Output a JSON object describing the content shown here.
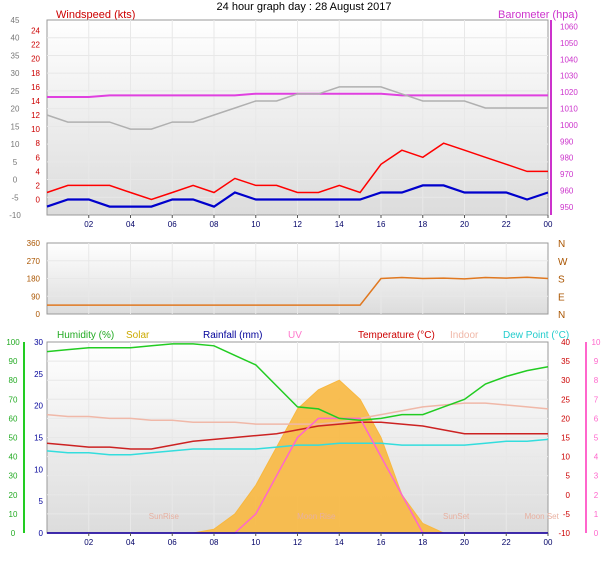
{
  "title": "24 hour graph day : 28 August 2017",
  "time_ticks": [
    "02",
    "04",
    "06",
    "08",
    "10",
    "12",
    "14",
    "16",
    "18",
    "20",
    "22",
    "00"
  ],
  "colors": {
    "gust": "#ff0000",
    "wind": "#0000cc",
    "baro": "#e040e0",
    "gust_bar": "#b0b0b0",
    "dir": "#e07820",
    "humidity": "#22cc22",
    "temperature": "#cc2222",
    "dewpoint": "#33dddd",
    "indoor": "#f0b8a8",
    "uv": "#ff66cc",
    "solar": "#f8b840",
    "rainfall": "#000099"
  },
  "chart_data": [
    {
      "type": "line",
      "panel": "wind",
      "ylabel": "Windspeed (kts)",
      "y2label": "Barometer (hpa)",
      "y_ticks": [
        -10,
        -5,
        0,
        5,
        10,
        15,
        20,
        25,
        30,
        35,
        40,
        45
      ],
      "y_ticks_secondary": [
        0,
        2,
        4,
        6,
        8,
        10,
        12,
        14,
        16,
        18,
        20,
        22,
        24
      ],
      "y2_ticks": [
        950,
        960,
        970,
        980,
        990,
        1000,
        1010,
        1020,
        1030,
        1040,
        1050,
        1060
      ],
      "x_hours": [
        0,
        1,
        2,
        3,
        4,
        5,
        6,
        7,
        8,
        9,
        10,
        11,
        12,
        13,
        14,
        15,
        16,
        17,
        18,
        19,
        20,
        21,
        22,
        23,
        24
      ],
      "series": [
        {
          "key": "baro",
          "values": [
            1017,
            1017,
            1017,
            1018,
            1018,
            1018,
            1018,
            1018,
            1018,
            1018,
            1019,
            1019,
            1019,
            1019,
            1019,
            1019,
            1019,
            1018,
            1018,
            1018,
            1018,
            1018,
            1018,
            1018,
            1018
          ]
        },
        {
          "key": "gust_bar",
          "values": [
            12,
            11,
            11,
            11,
            10,
            10,
            11,
            11,
            12,
            13,
            14,
            14,
            15,
            15,
            16,
            16,
            16,
            15,
            14,
            14,
            14,
            13,
            13,
            13,
            13
          ]
        },
        {
          "key": "gust",
          "values": [
            1,
            2,
            2,
            2,
            1,
            0,
            1,
            2,
            1,
            3,
            2,
            2,
            1,
            1,
            2,
            1,
            5,
            7,
            6,
            8,
            7,
            6,
            5,
            4,
            4
          ]
        },
        {
          "key": "wind",
          "values": [
            -1,
            0,
            0,
            -1,
            -1,
            -1,
            0,
            0,
            -1,
            1,
            0,
            0,
            0,
            0,
            0,
            0,
            1,
            1,
            2,
            2,
            1,
            1,
            1,
            0,
            1
          ]
        }
      ]
    },
    {
      "type": "line",
      "panel": "direction",
      "y_ticks": [
        0,
        90,
        180,
        270,
        360
      ],
      "y2_ticks": [
        "N",
        "E",
        "S",
        "W",
        "N"
      ],
      "series": [
        {
          "key": "dir",
          "values": [
            45,
            45,
            45,
            45,
            45,
            45,
            45,
            45,
            45,
            45,
            45,
            45,
            45,
            45,
            45,
            45,
            180,
            185,
            180,
            182,
            178,
            185,
            182,
            186,
            180
          ]
        }
      ]
    },
    {
      "type": "line",
      "panel": "temperature",
      "legend": [
        "Humidity (%)",
        "Solar",
        "Rainfall (mm)",
        "UV",
        "Temperature (°C)",
        "Indoor",
        "Dew Point (°C)"
      ],
      "y_ticks_humidity": [
        0,
        10,
        20,
        30,
        40,
        50,
        60,
        70,
        80,
        90,
        100
      ],
      "y_ticks_rain": [
        0,
        5,
        10,
        15,
        20,
        25,
        30
      ],
      "y_ticks_temp": [
        -10,
        -5,
        0,
        5,
        10,
        15,
        20,
        25,
        30,
        35,
        40
      ],
      "y_ticks_uv": [
        0,
        1,
        2,
        3,
        4,
        5,
        6,
        7,
        8,
        9,
        10
      ],
      "series": [
        {
          "key": "humidity",
          "values": [
            95,
            96,
            97,
            97,
            97,
            98,
            99,
            99,
            98,
            93,
            88,
            77,
            66,
            65,
            60,
            59,
            60,
            62,
            62,
            66,
            70,
            78,
            82,
            85,
            87
          ]
        },
        {
          "key": "temperature",
          "values": [
            13.5,
            13,
            12.5,
            12.5,
            12,
            12,
            13,
            14,
            14.5,
            15,
            15.5,
            16,
            17,
            18,
            18.5,
            19,
            19,
            18.5,
            18,
            17,
            16,
            16,
            16,
            16,
            16
          ]
        },
        {
          "key": "dewpoint",
          "values": [
            11.5,
            11,
            11,
            10.5,
            10.5,
            11,
            11.5,
            12,
            12,
            12,
            12,
            12.5,
            13,
            13,
            13.5,
            13.5,
            13.5,
            13,
            13,
            13,
            13,
            13.5,
            14,
            14,
            14.5
          ]
        },
        {
          "key": "indoor",
          "values": [
            21,
            20.5,
            20.5,
            20,
            20,
            19.5,
            19.5,
            19,
            19,
            19,
            18.5,
            18.5,
            18.5,
            18.5,
            19,
            20,
            21,
            22,
            23,
            23.5,
            24,
            24,
            23.5,
            23,
            22.5
          ]
        },
        {
          "key": "uv",
          "values": [
            0,
            0,
            0,
            0,
            0,
            0,
            0,
            0,
            0,
            0,
            1,
            3,
            5,
            6,
            6,
            6,
            4,
            2,
            0,
            0,
            0,
            0,
            0,
            0,
            0
          ]
        },
        {
          "key": "solar",
          "values": [
            0,
            0,
            0,
            0,
            0,
            0,
            0,
            0,
            2,
            10,
            25,
            45,
            65,
            75,
            80,
            70,
            50,
            20,
            5,
            0,
            0,
            0,
            0,
            0,
            0
          ]
        }
      ],
      "rainfall": [
        0,
        0,
        0,
        0,
        0,
        0,
        0,
        0,
        0,
        0,
        0,
        0,
        0,
        0,
        0,
        0,
        0,
        0,
        0,
        0,
        0,
        0,
        0,
        0,
        0
      ],
      "markers": [
        {
          "label": "SunRise",
          "hour": 5.6
        },
        {
          "label": "SunSet",
          "hour": 19.6
        },
        {
          "label": "Moon Rise",
          "hour": 12.9
        },
        {
          "label": "Moon Set",
          "hour": 23.7
        }
      ]
    }
  ]
}
